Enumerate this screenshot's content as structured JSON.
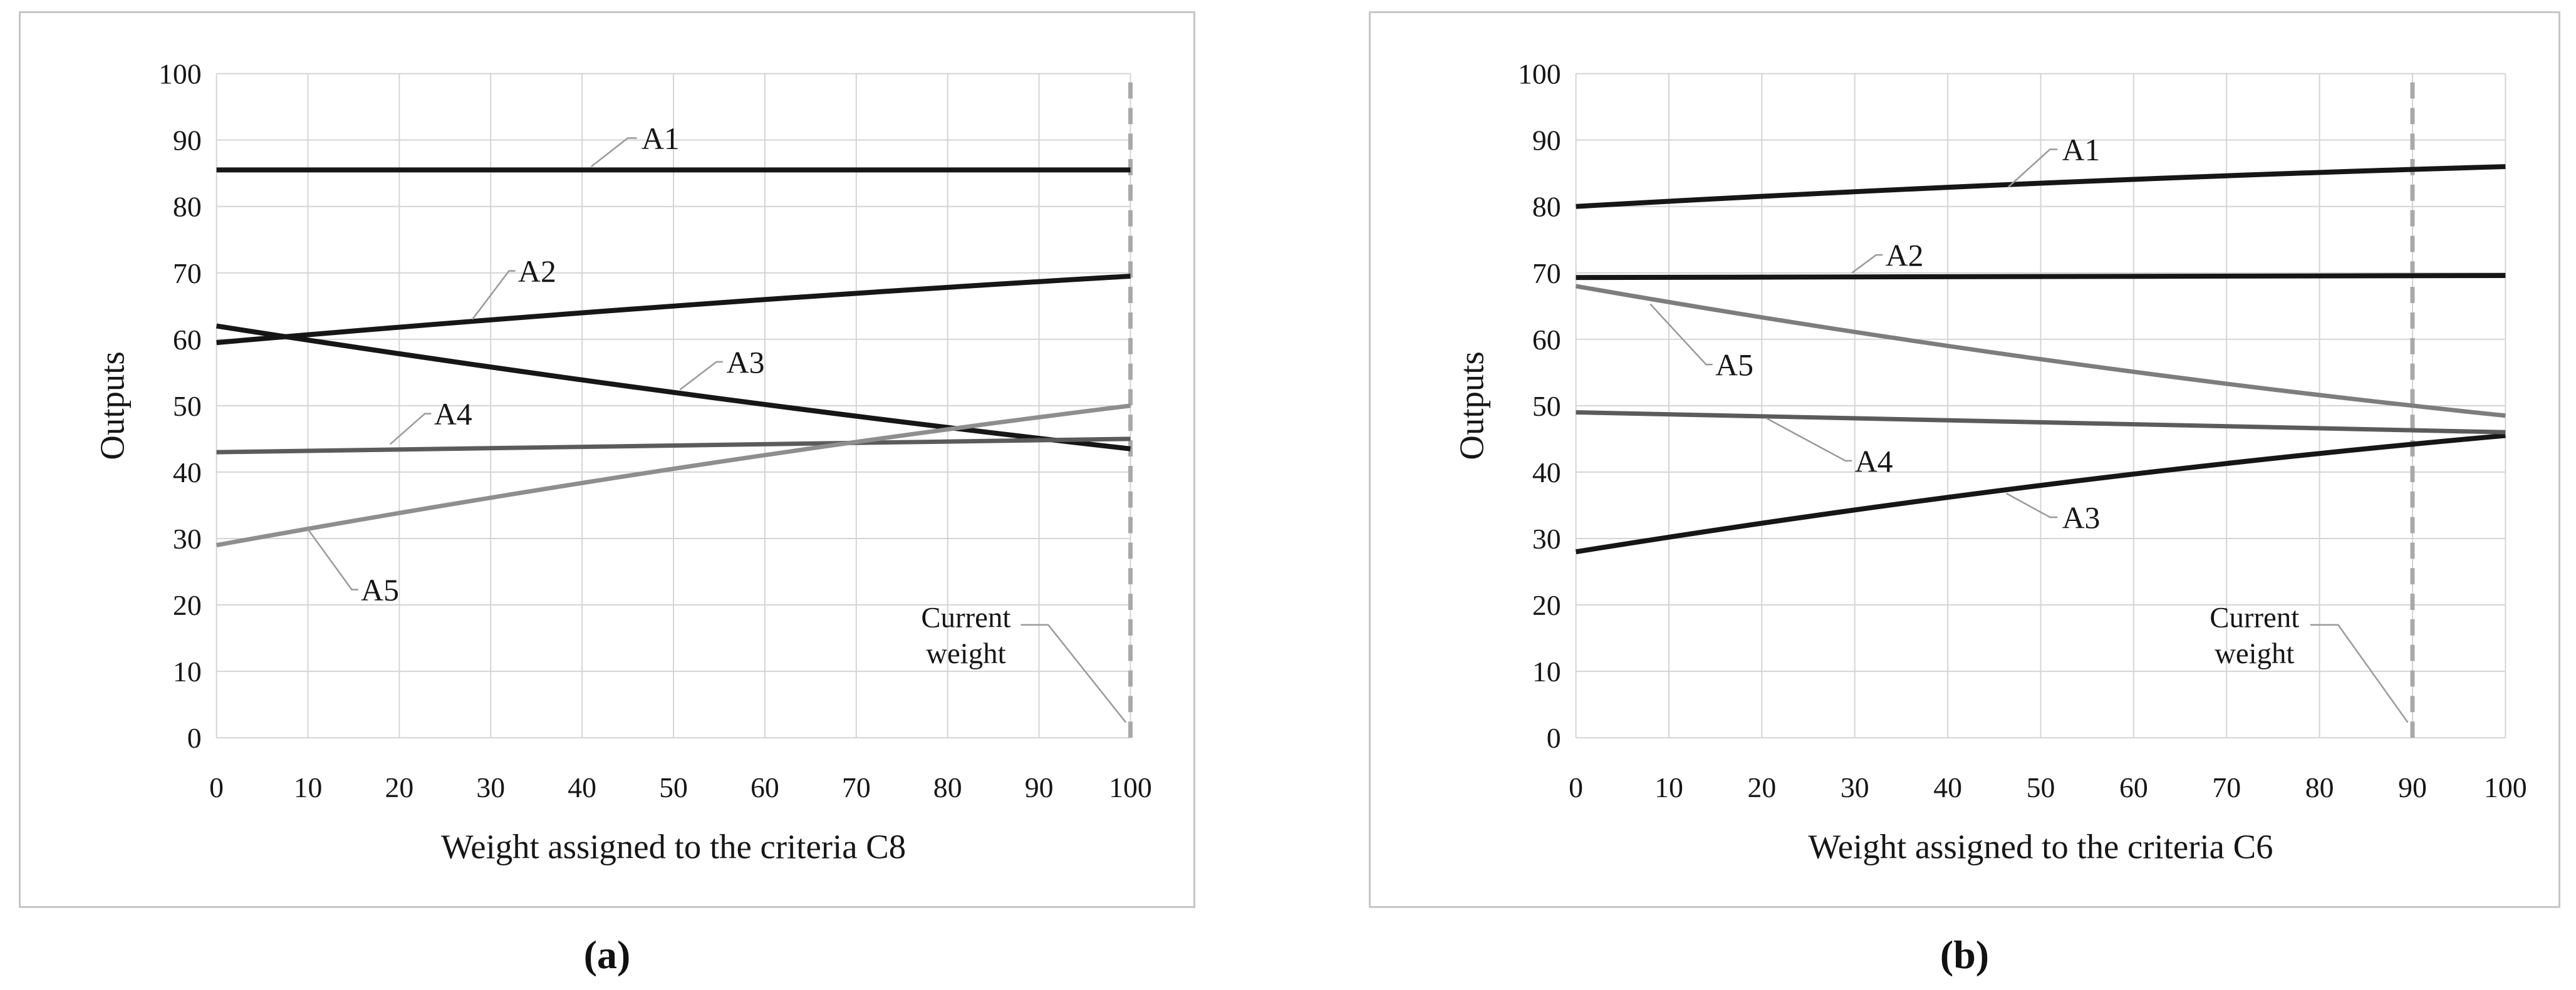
{
  "styles": {
    "grid_color": "#d4d4d4",
    "dashed_color": "#a8a8a8",
    "leader_color": "#999999",
    "text_color": "#161616",
    "panel_border_color": "#c6c6c6",
    "series_black": "#161616",
    "series_dark_gray": "#5b5b5b",
    "series_gray": "#868686"
  },
  "chart_data": [
    {
      "id": "a",
      "type": "line",
      "caption": "(a)",
      "xlabel": "Weight assigned to the criteria C8",
      "ylabel": "Outputs",
      "xlim": [
        0,
        100
      ],
      "ylim": [
        0,
        100
      ],
      "x_ticks": [
        0,
        10,
        20,
        30,
        40,
        50,
        60,
        70,
        80,
        90,
        100
      ],
      "y_ticks": [
        0,
        10,
        20,
        30,
        40,
        50,
        60,
        70,
        80,
        90,
        100
      ],
      "grid": true,
      "legend_position": "inline-labels",
      "current_weight": {
        "x": 100,
        "label": [
          "Current",
          "weight"
        ],
        "label_pos": [
          82,
          15.5
        ],
        "leader": [
          [
            88,
            17
          ],
          [
            91,
            17
          ],
          [
            99.5,
            2.3
          ]
        ]
      },
      "series": [
        {
          "name": "A1",
          "color": "#161616",
          "width": 8,
          "x": [
            0,
            50,
            100
          ],
          "y": [
            85.5,
            85.5,
            85.5
          ],
          "label_pos": [
            46.5,
            90.3
          ],
          "leader": [
            [
              41,
              86
            ],
            [
              45,
              90.3
            ],
            [
              46,
              90.3
            ]
          ]
        },
        {
          "name": "A2",
          "color": "#161616",
          "width": 8,
          "x": [
            0,
            50,
            100
          ],
          "y": [
            59.5,
            65,
            69.5
          ],
          "label_pos": [
            33,
            70.3
          ],
          "leader": [
            [
              28,
              63
            ],
            [
              32,
              70.3
            ],
            [
              32.7,
              70.3
            ]
          ]
        },
        {
          "name": "A3",
          "color": "#161616",
          "width": 8,
          "x": [
            0,
            50,
            100
          ],
          "y": [
            62,
            52,
            43.5
          ],
          "label_pos": [
            55.8,
            56.6
          ],
          "leader": [
            [
              50.7,
              52.4
            ],
            [
              54.7,
              56.6
            ],
            [
              55.4,
              56.6
            ]
          ]
        },
        {
          "name": "A4",
          "color": "#5b5b5b",
          "width": 7,
          "x": [
            0,
            50,
            100
          ],
          "y": [
            43,
            44,
            45
          ],
          "label_pos": [
            23.8,
            48.8
          ],
          "leader": [
            [
              19,
              44.2
            ],
            [
              22.8,
              48.8
            ],
            [
              23.5,
              48.8
            ]
          ]
        },
        {
          "name": "A5",
          "color": "#8e8e8e",
          "width": 7,
          "x": [
            0,
            50,
            100
          ],
          "y": [
            29,
            40.5,
            50
          ],
          "label_pos": [
            15.8,
            22.3
          ],
          "leader": [
            [
              10,
              31.4
            ],
            [
              14.8,
              22.3
            ],
            [
              15.5,
              22.3
            ]
          ]
        }
      ]
    },
    {
      "id": "b",
      "type": "line",
      "caption": "(b)",
      "xlabel": "Weight assigned to the criteria C6",
      "ylabel": "Outputs",
      "xlim": [
        0,
        100
      ],
      "ylim": [
        0,
        100
      ],
      "x_ticks": [
        0,
        10,
        20,
        30,
        40,
        50,
        60,
        70,
        80,
        90,
        100
      ],
      "y_ticks": [
        0,
        10,
        20,
        30,
        40,
        50,
        60,
        70,
        80,
        90,
        100
      ],
      "grid": true,
      "legend_position": "inline-labels",
      "current_weight": {
        "x": 90,
        "label": [
          "Current",
          "weight"
        ],
        "label_pos": [
          73,
          15.5
        ],
        "leader": [
          [
            79,
            17
          ],
          [
            82,
            17
          ],
          [
            89.5,
            2.3
          ]
        ]
      },
      "series": [
        {
          "name": "A1",
          "color": "#161616",
          "width": 8,
          "x": [
            0,
            50,
            100
          ],
          "y": [
            80,
            83.5,
            86
          ],
          "label_pos": [
            52.3,
            88.6
          ],
          "leader": [
            [
              46.5,
              82.9
            ],
            [
              51,
              88.6
            ],
            [
              51.8,
              88.6
            ]
          ]
        },
        {
          "name": "A2",
          "color": "#161616",
          "width": 8,
          "x": [
            0,
            50,
            100
          ],
          "y": [
            69.3,
            69.5,
            69.6
          ],
          "label_pos": [
            33.3,
            72.7
          ],
          "leader": [
            [
              29.7,
              70
            ],
            [
              32.3,
              72.7
            ],
            [
              33,
              72.7
            ]
          ]
        },
        {
          "name": "A3",
          "color": "#161616",
          "width": 8,
          "x": [
            0,
            50,
            100
          ],
          "y": [
            28,
            38,
            45.5
          ],
          "label_pos": [
            52.3,
            33.2
          ],
          "leader": [
            [
              46.3,
              36.8
            ],
            [
              51,
              33.2
            ],
            [
              51.8,
              33.2
            ]
          ]
        },
        {
          "name": "A4",
          "color": "#5b5b5b",
          "width": 7,
          "x": [
            0,
            50,
            100
          ],
          "y": [
            49,
            47.4,
            46
          ],
          "label_pos": [
            30,
            41.7
          ],
          "leader": [
            [
              20.5,
              48.1
            ],
            [
              29,
              41.7
            ],
            [
              29.7,
              41.7
            ]
          ]
        },
        {
          "name": "A5",
          "color": "#7d7d7d",
          "width": 7,
          "x": [
            0,
            50,
            100
          ],
          "y": [
            68,
            57,
            48.5
          ],
          "label_pos": [
            15,
            56.2
          ],
          "leader": [
            [
              8,
              65.3
            ],
            [
              14,
              56.2
            ],
            [
              14.7,
              56.2
            ]
          ]
        }
      ]
    }
  ]
}
